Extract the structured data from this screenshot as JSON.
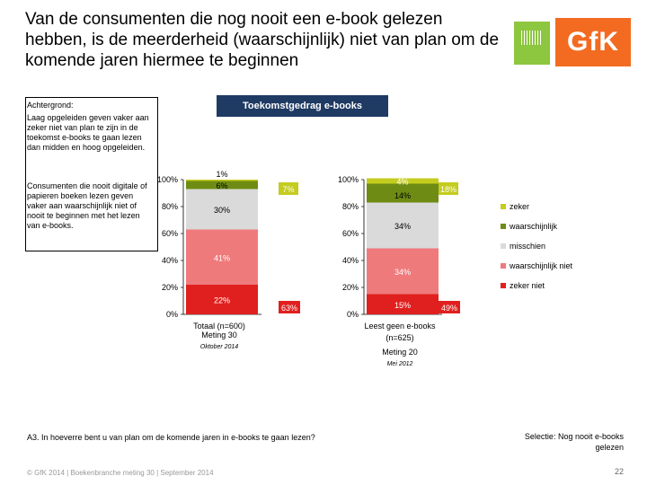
{
  "title": "Van de consumenten die nog nooit een e-book gelezen hebben, is de meerderheid (waarschijnlijk) niet van plan om de komende jaren hiermee te beginnen",
  "brand": {
    "gfk_logo": "GfK"
  },
  "sidebar": {
    "heading": "Achtergrond:",
    "para1": "Laag opgeleiden geven vaker aan zeker niet van plan te zijn in de toekomst e-books te gaan lezen dan midden en hoog opgeleiden.",
    "para2": "Consumenten die nooit digitale of papieren boeken lezen geven vaker aan waarschijnlijk niet of nooit te beginnen met het lezen van e-books."
  },
  "chart_data": {
    "type": "bar",
    "title": "Toekomstgedrag e-books",
    "stacked": true,
    "colors": {
      "zeker": "#c4cc1f",
      "waarschijnlijk": "#6e8c13",
      "misschien": "#dadada",
      "waarschijnlijk niet": "#ef7a7c",
      "zeker niet": "#e0201e"
    },
    "legend": [
      "zeker",
      "waarschijnlijk",
      "misschien",
      "waarschijnlijk niet",
      "zeker niet"
    ],
    "legend_position": "right",
    "ylim": [
      0,
      100
    ],
    "yticks": [
      "0%",
      "20%",
      "40%",
      "60%",
      "80%",
      "100%"
    ],
    "charts": [
      {
        "category": "Totaal (n=600)",
        "meting": "Meting 30",
        "date": "Oktober 2014",
        "series": [
          {
            "name": "zeker niet",
            "value": 22,
            "label": "22%"
          },
          {
            "name": "waarschijnlijk niet",
            "value": 41,
            "label": "41%"
          },
          {
            "name": "misschien",
            "value": 30,
            "label": "30%"
          },
          {
            "name": "waarschijnlijk",
            "value": 6,
            "label": "6%"
          },
          {
            "name": "zeker",
            "value": 1,
            "label": "1%"
          }
        ],
        "sum_top": "7%",
        "sum_bottom": "63%"
      },
      {
        "category": "Leest geen e-books (n=625)",
        "meting": "Meting 20",
        "date": "Mei 2012",
        "series": [
          {
            "name": "zeker niet",
            "value": 15,
            "label": "15%"
          },
          {
            "name": "waarschijnlijk niet",
            "value": 34,
            "label": "34%"
          },
          {
            "name": "misschien",
            "value": 34,
            "label": "34%"
          },
          {
            "name": "waarschijnlijk",
            "value": 14,
            "label": "14%"
          },
          {
            "name": "zeker",
            "value": 4,
            "label": "4%"
          }
        ],
        "sum_top": "18%",
        "sum_bottom": "49%"
      }
    ]
  },
  "footnote": "A3. In hoeverre bent u van plan om de komende jaren in e-books te gaan lezen?",
  "selectie": "Selectie: Nog nooit e-books gelezen",
  "copyright": "© GfK 2014 | Boekenbranche meting 30 | September 2014",
  "page_number": "22"
}
